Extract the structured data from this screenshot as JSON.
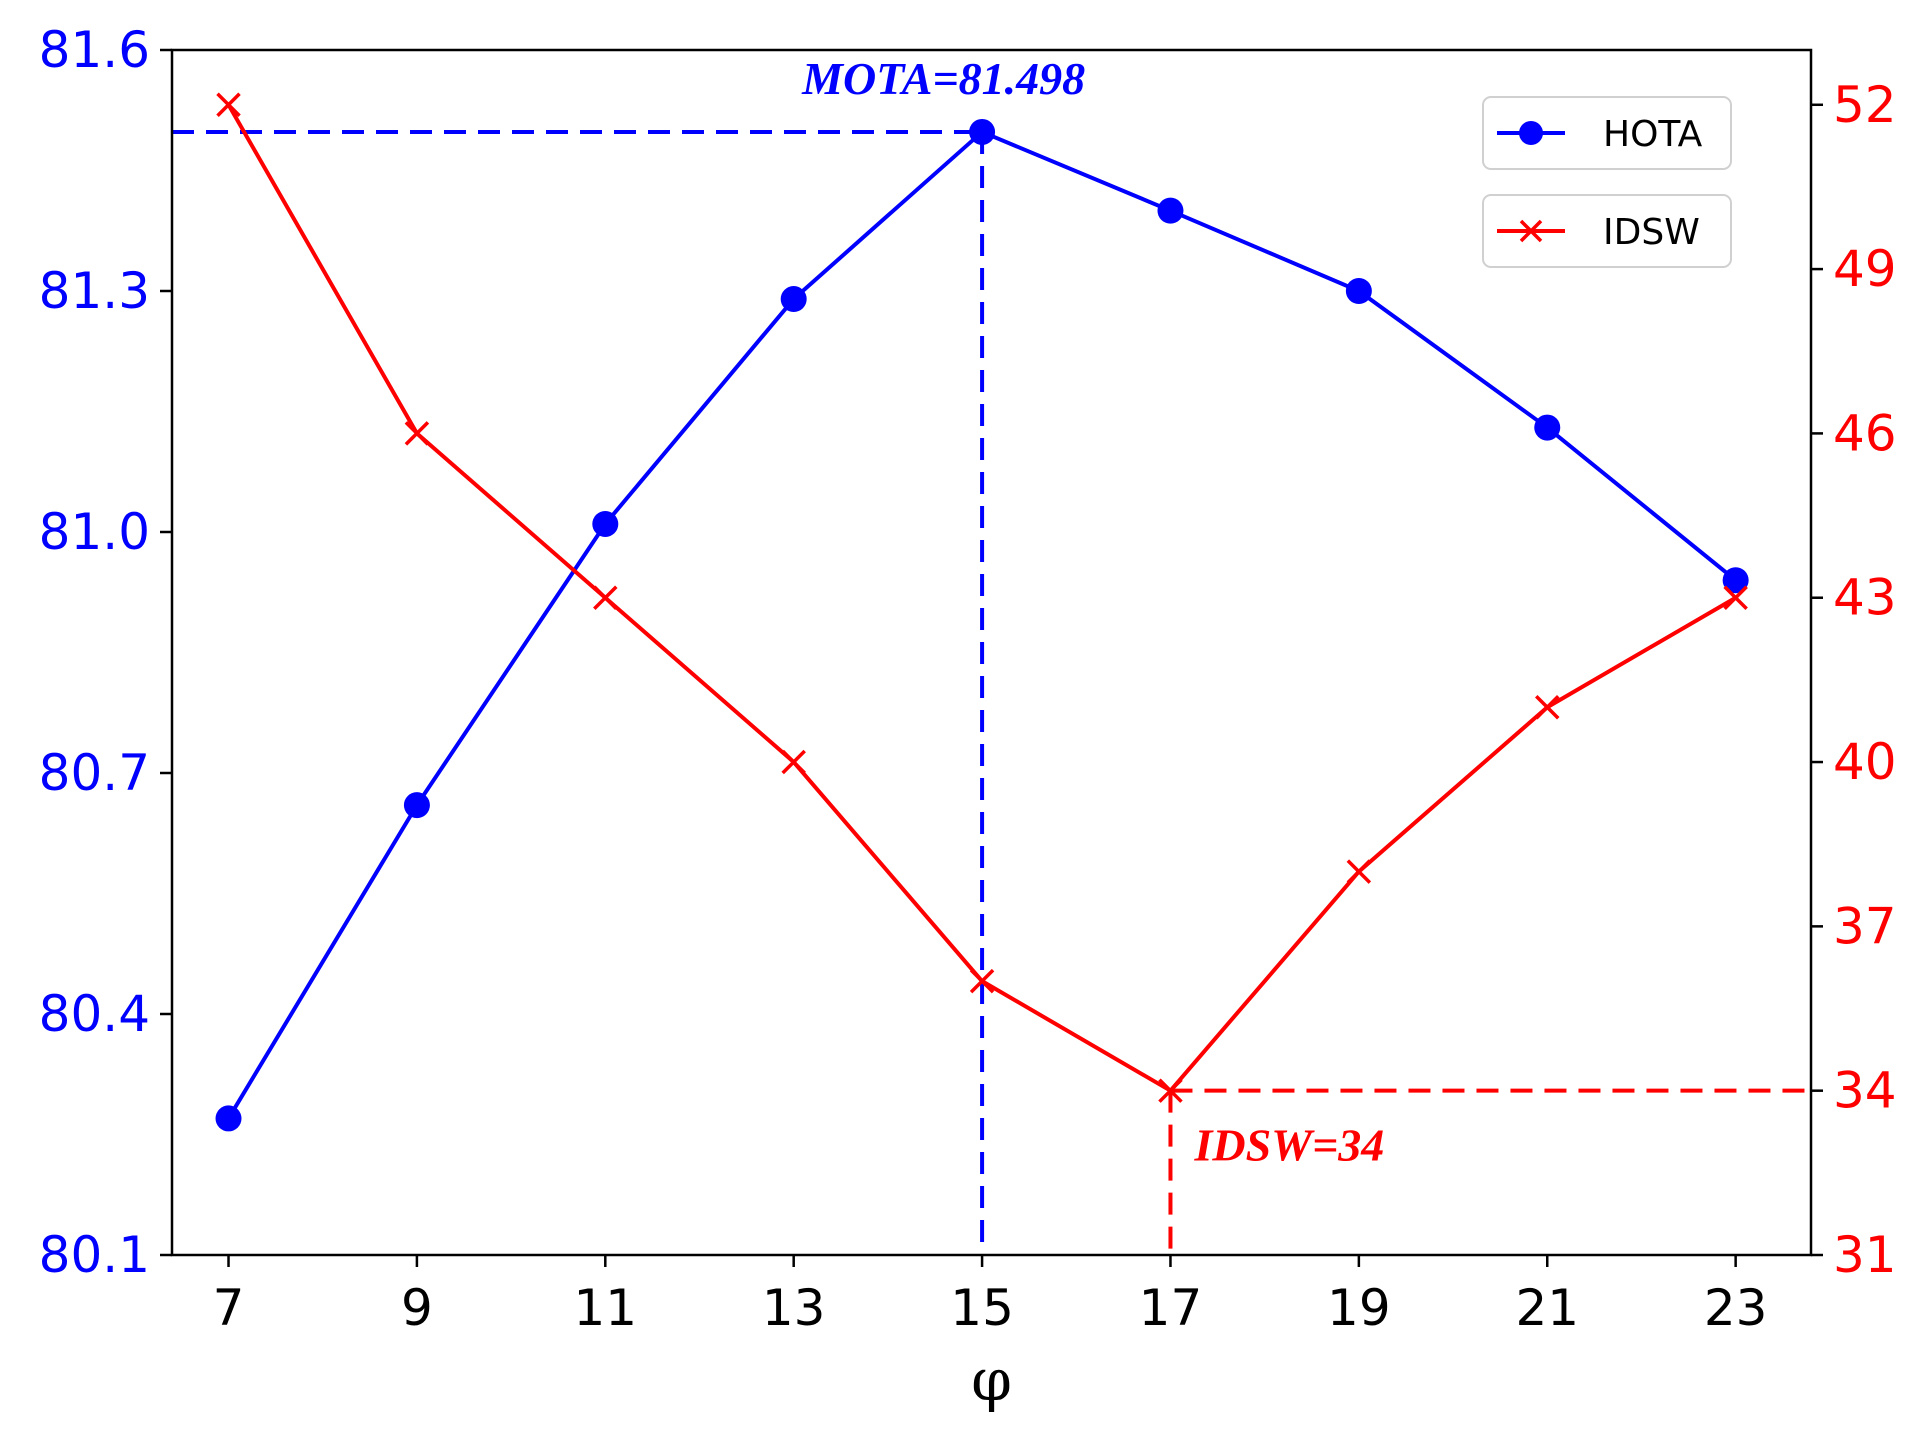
{
  "chart_data": {
    "type": "line",
    "x": [
      7,
      9,
      11,
      13,
      15,
      17,
      19,
      21,
      23
    ],
    "x_tick_labels": [
      "7",
      "9",
      "11",
      "13",
      "15",
      "17",
      "19",
      "21",
      "23"
    ],
    "xlabel": "φ",
    "series": [
      {
        "name": "HOTA",
        "axis": "left",
        "color": "#0000ff",
        "marker": "circle",
        "values": [
          80.27,
          80.66,
          81.01,
          81.29,
          81.498,
          81.4,
          81.3,
          81.13,
          80.94
        ]
      },
      {
        "name": "IDSW",
        "axis": "right",
        "color": "#ff0000",
        "marker": "x",
        "values": [
          52,
          46,
          43,
          40,
          36,
          34,
          38,
          41,
          43
        ]
      }
    ],
    "left_axis": {
      "color": "#0000ff",
      "ylim": [
        80.1,
        81.6
      ],
      "ticks": [
        80.1,
        80.4,
        80.7,
        81.0,
        81.3,
        81.6
      ],
      "tick_labels": [
        "80.1",
        "80.4",
        "80.7",
        "81.0",
        "81.3",
        "81.6"
      ]
    },
    "right_axis": {
      "color": "#ff0000",
      "ylim": [
        31,
        53
      ],
      "ticks": [
        31,
        34,
        37,
        40,
        43,
        46,
        49,
        52
      ],
      "tick_labels": [
        "31",
        "34",
        "37",
        "40",
        "43",
        "46",
        "49",
        "52"
      ]
    },
    "xlim": [
      6.4,
      23.8
    ],
    "grid": false,
    "legend_placement": "top-right",
    "annotations": [
      {
        "text": "MOTA=81.498",
        "color": "#0000ff",
        "axis": "left",
        "x": 15,
        "y": 81.498
      },
      {
        "text": "IDSW=34",
        "color": "#ff0000",
        "axis": "right",
        "x": 17,
        "y": 34
      }
    ]
  }
}
